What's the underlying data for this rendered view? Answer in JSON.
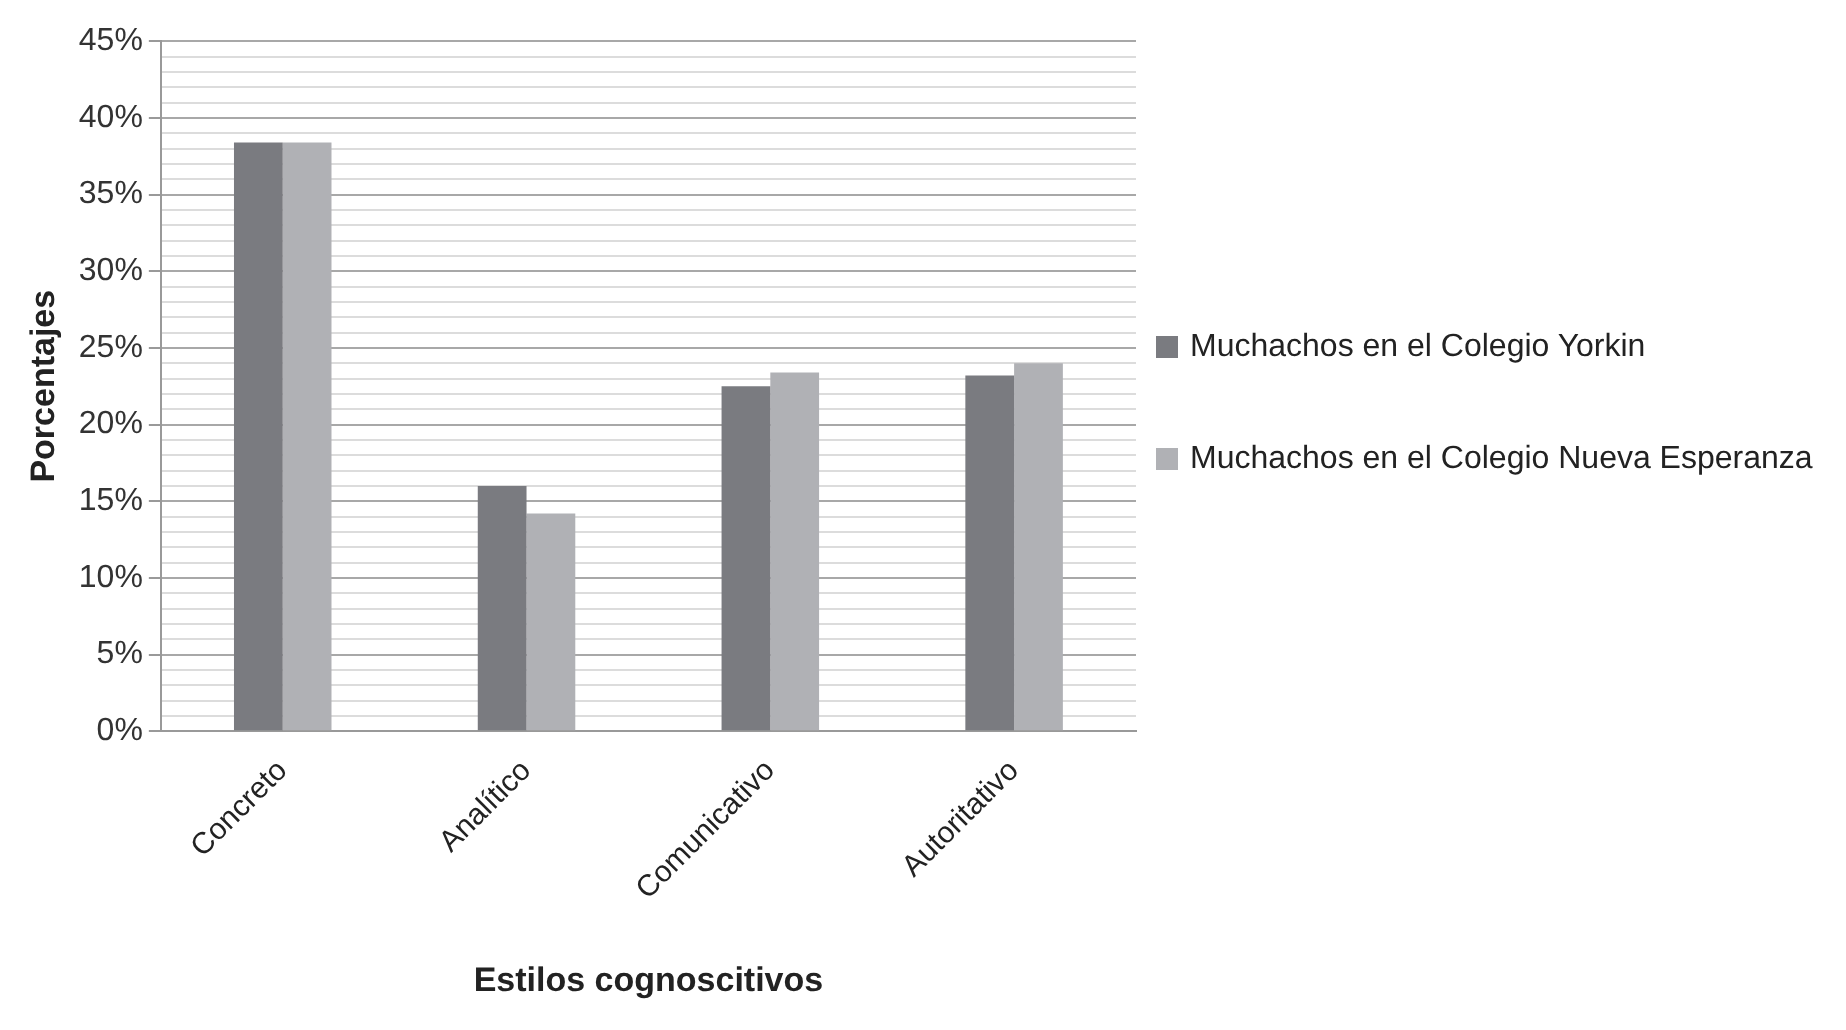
{
  "chart_data": {
    "type": "bar",
    "xlabel": "Estilos cognoscitivos",
    "ylabel": "Porcentajes",
    "categories": [
      "Concreto",
      "Analítico",
      "Comunicativo",
      "Autoritativo"
    ],
    "series": [
      {
        "name": "Muchachos en el Colegio Yorkin",
        "color": "#7a7b80",
        "values": [
          38.4,
          16.0,
          22.5,
          23.2
        ]
      },
      {
        "name": "Muchachos en el Colegio Nueva Esperanza",
        "color": "#b0b1b5",
        "values": [
          38.4,
          14.2,
          23.4,
          24.0
        ]
      }
    ],
    "ylim": [
      0,
      45
    ],
    "yticks": [
      {
        "value": 0,
        "label": "0%"
      },
      {
        "value": 1,
        "label": null
      },
      {
        "value": 2,
        "label": null
      },
      {
        "value": 3,
        "label": null
      },
      {
        "value": 4,
        "label": null
      },
      {
        "value": 5,
        "label": "5%"
      },
      {
        "value": 6,
        "label": null
      },
      {
        "value": 7,
        "label": null
      },
      {
        "value": 8,
        "label": null
      },
      {
        "value": 9,
        "label": null
      },
      {
        "value": 10,
        "label": "10%"
      },
      {
        "value": 11,
        "label": null
      },
      {
        "value": 12,
        "label": null
      },
      {
        "value": 13,
        "label": null
      },
      {
        "value": 14,
        "label": null
      },
      {
        "value": 15,
        "label": "15%"
      },
      {
        "value": 16,
        "label": null
      },
      {
        "value": 17,
        "label": null
      },
      {
        "value": 18,
        "label": null
      },
      {
        "value": 19,
        "label": null
      },
      {
        "value": 20,
        "label": "20%"
      },
      {
        "value": 21,
        "label": null
      },
      {
        "value": 22,
        "label": null
      },
      {
        "value": 23,
        "label": null
      },
      {
        "value": 24,
        "label": null
      },
      {
        "value": 25,
        "label": "25%"
      },
      {
        "value": 26,
        "label": null
      },
      {
        "value": 27,
        "label": null
      },
      {
        "value": 28,
        "label": null
      },
      {
        "value": 29,
        "label": null
      },
      {
        "value": 30,
        "label": "30%"
      },
      {
        "value": 31,
        "label": null
      },
      {
        "value": 32,
        "label": null
      },
      {
        "value": 33,
        "label": null
      },
      {
        "value": 34,
        "label": null
      },
      {
        "value": 35,
        "label": "35%"
      },
      {
        "value": 36,
        "label": null
      },
      {
        "value": 37,
        "label": null
      },
      {
        "value": 38,
        "label": null
      },
      {
        "value": 39,
        "label": null
      },
      {
        "value": 40,
        "label": "40%"
      },
      {
        "value": 41,
        "label": null
      },
      {
        "value": 42,
        "label": null
      },
      {
        "value": 43,
        "label": null
      },
      {
        "value": 44,
        "label": null
      },
      {
        "value": 45,
        "label": "45%"
      }
    ],
    "grid": "y",
    "legend": "right"
  }
}
